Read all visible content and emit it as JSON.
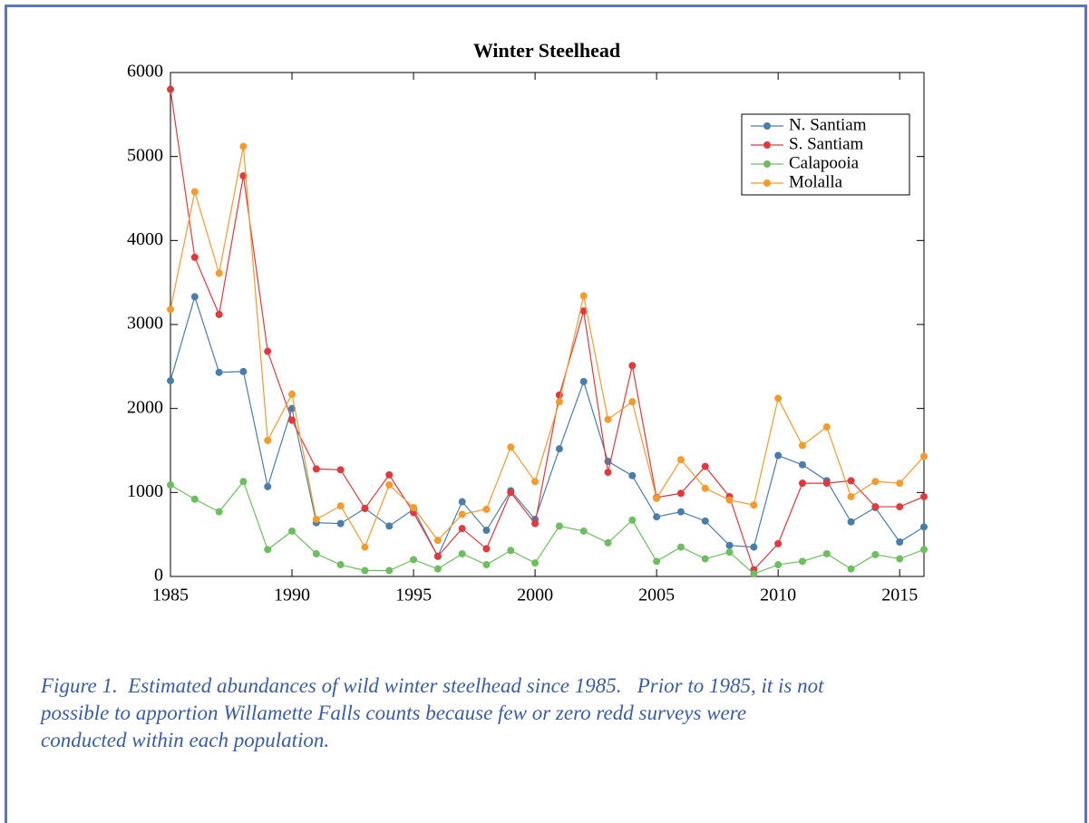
{
  "chart_data": {
    "type": "line",
    "title": "Winter Steelhead",
    "x": [
      1985,
      1986,
      1987,
      1988,
      1989,
      1990,
      1991,
      1992,
      1993,
      1994,
      1995,
      1996,
      1997,
      1998,
      1999,
      2000,
      2001,
      2002,
      2003,
      2004,
      2005,
      2006,
      2007,
      2008,
      2009,
      2010,
      2011,
      2012,
      2013,
      2014,
      2015,
      2016
    ],
    "series": [
      {
        "name": "N. Santiam",
        "color": "#4a7eaa",
        "values": [
          2330,
          3330,
          2430,
          2440,
          1070,
          2000,
          640,
          630,
          810,
          600,
          800,
          240,
          890,
          550,
          1020,
          680,
          1520,
          2320,
          1370,
          1200,
          710,
          770,
          660,
          370,
          350,
          1440,
          1330,
          1140,
          650,
          820,
          410,
          590
        ]
      },
      {
        "name": "S. Santiam",
        "color": "#e03a3e",
        "values": [
          5800,
          3800,
          3120,
          4770,
          2680,
          1860,
          1280,
          1270,
          810,
          1210,
          760,
          240,
          570,
          330,
          1000,
          630,
          2160,
          3160,
          1240,
          2510,
          940,
          990,
          1310,
          950,
          80,
          390,
          1110,
          1110,
          1140,
          830,
          830,
          950
        ]
      },
      {
        "name": "Calapooia",
        "color": "#6cbf5f",
        "values": [
          1090,
          920,
          770,
          1130,
          320,
          540,
          270,
          140,
          70,
          70,
          200,
          90,
          270,
          140,
          310,
          160,
          600,
          540,
          400,
          670,
          180,
          350,
          210,
          290,
          30,
          140,
          180,
          270,
          90,
          260,
          210,
          320
        ]
      },
      {
        "name": "Molalla",
        "color": "#f59a2c",
        "values": [
          3180,
          4580,
          3610,
          5120,
          1620,
          2170,
          680,
          840,
          350,
          1090,
          820,
          430,
          740,
          800,
          1540,
          1130,
          2080,
          3340,
          1870,
          2080,
          930,
          1390,
          1050,
          910,
          850,
          2120,
          1560,
          1780,
          950,
          1130,
          1110,
          1430
        ]
      }
    ],
    "xlim": [
      1985,
      2016
    ],
    "xticks": [
      1985,
      1990,
      1995,
      2000,
      2005,
      2010,
      2015
    ],
    "ylim": [
      0,
      6000
    ],
    "yticks": [
      0,
      1000,
      2000,
      3000,
      4000,
      5000,
      6000
    ],
    "legend": "upper right"
  },
  "caption": [
    "Figure 1.  Estimated abundances of wild winter steelhead since 1985.   Prior to 1985, it is not",
    "possible to apportion Willamette Falls counts because few or zero redd surveys were",
    "conducted within each population."
  ]
}
